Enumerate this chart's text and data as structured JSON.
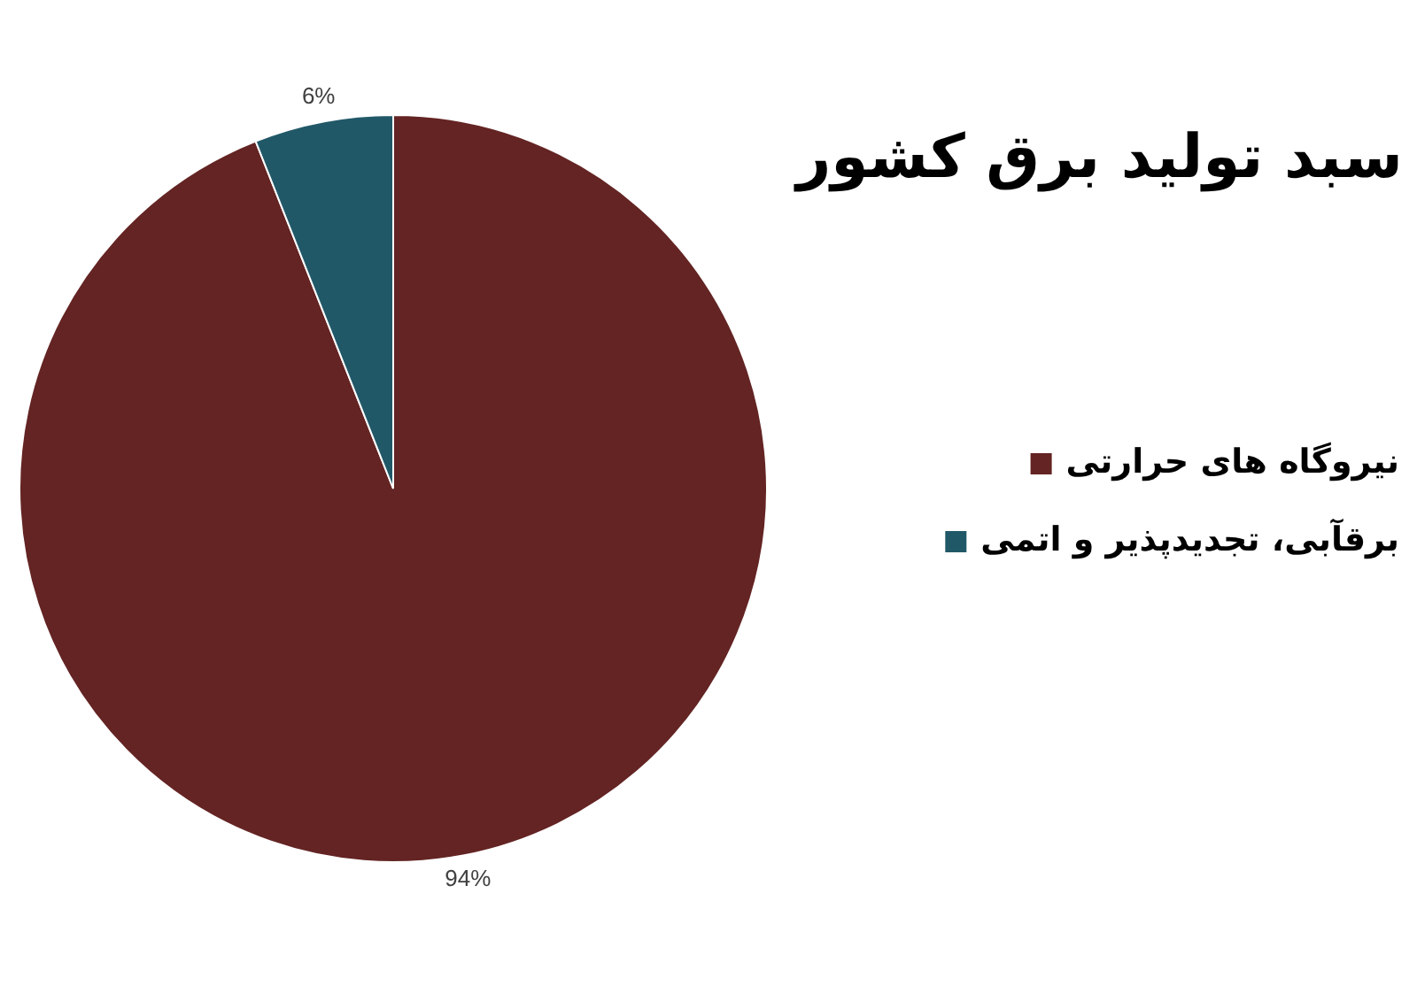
{
  "chart_data": {
    "type": "pie",
    "title": "سبد تولید برق کشور",
    "categories": [
      "نیروگاه های حرارتی",
      "برقآبی، تجدیدپذیر و اتمی"
    ],
    "values": [
      94,
      6
    ],
    "colors": [
      "#632423",
      "#215868"
    ],
    "value_labels": [
      "94%",
      "6%"
    ],
    "legend": "right"
  }
}
